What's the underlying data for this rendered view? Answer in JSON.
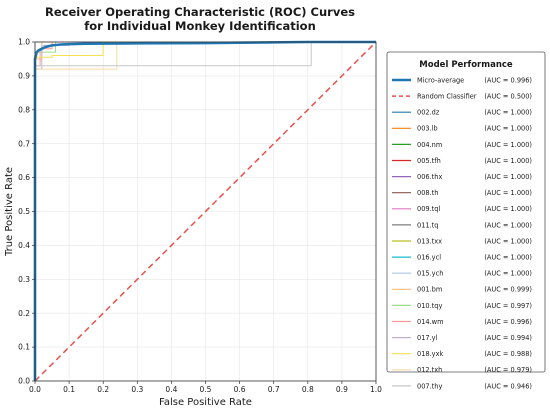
{
  "chart_data": {
    "type": "line",
    "title": "Receiver Operating Characteristic (ROC) Curves",
    "subtitle": "for Individual Monkey Identification",
    "xlabel": "False Positive Rate",
    "ylabel": "True Positive Rate",
    "xlim": [
      0,
      1
    ],
    "ylim": [
      0,
      1
    ],
    "xticks": [
      "0.0",
      "0.1",
      "0.2",
      "0.3",
      "0.4",
      "0.5",
      "0.6",
      "0.7",
      "0.8",
      "0.9",
      "1.0"
    ],
    "yticks": [
      "0.0",
      "0.1",
      "0.2",
      "0.3",
      "0.4",
      "0.5",
      "0.6",
      "0.7",
      "0.8",
      "0.9",
      "1.0"
    ],
    "grid": true,
    "legend": {
      "title": "Model Performance",
      "placement": "right"
    },
    "series": [
      {
        "name": "Micro-average",
        "auc": "(AUC = 0.996)",
        "color": "#1f77b4",
        "style": "thick",
        "x": [
          0,
          0,
          0.005,
          0.01,
          0.02,
          0.03,
          0.05,
          0.08,
          0.15,
          0.3,
          0.5,
          0.6,
          0.8,
          1.0
        ],
        "y": [
          0,
          0.95,
          0.97,
          0.975,
          0.98,
          0.985,
          0.99,
          0.993,
          0.995,
          0.996,
          0.997,
          0.998,
          1.0,
          1.0
        ]
      },
      {
        "name": "Random Classifier",
        "auc": "(AUC = 0.500)",
        "color": "#e8514a",
        "style": "dashed",
        "x": [
          0,
          1
        ],
        "y": [
          0,
          1
        ]
      },
      {
        "name": "002.dz",
        "auc": "(AUC = 1.000)",
        "color": "#1f77b4",
        "x": [
          0,
          0,
          1
        ],
        "y": [
          0,
          1,
          1
        ]
      },
      {
        "name": "003.lb",
        "auc": "(AUC = 1.000)",
        "color": "#ff7f0e",
        "x": [
          0,
          0,
          1
        ],
        "y": [
          0,
          1,
          1
        ]
      },
      {
        "name": "004.nm",
        "auc": "(AUC = 1.000)",
        "color": "#2ca02c",
        "x": [
          0,
          0,
          1
        ],
        "y": [
          0,
          1,
          1
        ]
      },
      {
        "name": "005.tfh",
        "auc": "(AUC = 1.000)",
        "color": "#d62728",
        "x": [
          0,
          0,
          1
        ],
        "y": [
          0,
          1,
          1
        ]
      },
      {
        "name": "006.thx",
        "auc": "(AUC = 1.000)",
        "color": "#9467bd",
        "x": [
          0,
          0,
          1
        ],
        "y": [
          0,
          1,
          1
        ]
      },
      {
        "name": "008.th",
        "auc": "(AUC = 1.000)",
        "color": "#8c564b",
        "x": [
          0,
          0,
          1
        ],
        "y": [
          0,
          1,
          1
        ]
      },
      {
        "name": "009.tql",
        "auc": "(AUC = 1.000)",
        "color": "#e377c2",
        "x": [
          0,
          0,
          1
        ],
        "y": [
          0,
          1,
          1
        ]
      },
      {
        "name": "011.tq",
        "auc": "(AUC = 1.000)",
        "color": "#7f7f7f",
        "x": [
          0,
          0,
          1
        ],
        "y": [
          0,
          1,
          1
        ]
      },
      {
        "name": "013.txx",
        "auc": "(AUC = 1.000)",
        "color": "#bcbd22",
        "x": [
          0,
          0,
          1
        ],
        "y": [
          0,
          1,
          1
        ]
      },
      {
        "name": "016.ycl",
        "auc": "(AUC = 1.000)",
        "color": "#17becf",
        "x": [
          0,
          0,
          1
        ],
        "y": [
          0,
          1,
          1
        ]
      },
      {
        "name": "015.ych",
        "auc": "(AUC = 1.000)",
        "color": "#aec7e8",
        "x": [
          0,
          0,
          1
        ],
        "y": [
          0,
          1,
          1
        ]
      },
      {
        "name": "001.bm",
        "auc": "(AUC = 0.999)",
        "color": "#ffbb78",
        "x": [
          0,
          0,
          0.02,
          0.02,
          1
        ],
        "y": [
          0,
          0.95,
          0.95,
          1,
          1
        ]
      },
      {
        "name": "010.tqy",
        "auc": "(AUC = 0.997)",
        "color": "#98df8a",
        "x": [
          0,
          0,
          0.06,
          0.06,
          1
        ],
        "y": [
          0,
          0.97,
          0.97,
          1,
          1
        ]
      },
      {
        "name": "014.wm",
        "auc": "(AUC = 0.996)",
        "color": "#ff9896",
        "x": [
          0,
          0,
          0.015,
          0.015,
          0.05,
          0.05,
          1
        ],
        "y": [
          0,
          0.93,
          0.93,
          0.98,
          0.98,
          1,
          1
        ]
      },
      {
        "name": "017.yl",
        "auc": "(AUC = 0.994)",
        "color": "#c5b0d5",
        "x": [
          0,
          0,
          0.02,
          0.02,
          0.1,
          0.1,
          1
        ],
        "y": [
          0,
          0.92,
          0.92,
          0.99,
          0.99,
          1,
          1
        ]
      },
      {
        "name": "018.yxk",
        "auc": "(AUC = 0.988)",
        "color": "#f5e050",
        "x": [
          0,
          0,
          0.05,
          0.05,
          0.2,
          0.2,
          1
        ],
        "y": [
          0,
          0.955,
          0.955,
          0.96,
          0.96,
          1,
          1
        ]
      },
      {
        "name": "012.txh",
        "auc": "(AUC = 0.979)",
        "color": "#f7d6a8",
        "x": [
          0,
          0,
          0.24,
          0.24,
          1
        ],
        "y": [
          0,
          0.92,
          0.92,
          1,
          1
        ]
      },
      {
        "name": "007.thy",
        "auc": "(AUC = 0.946)",
        "color": "#c7c7c7",
        "x": [
          0,
          0,
          0.81,
          0.81,
          1
        ],
        "y": [
          0,
          0.93,
          0.93,
          1,
          1
        ]
      }
    ]
  }
}
